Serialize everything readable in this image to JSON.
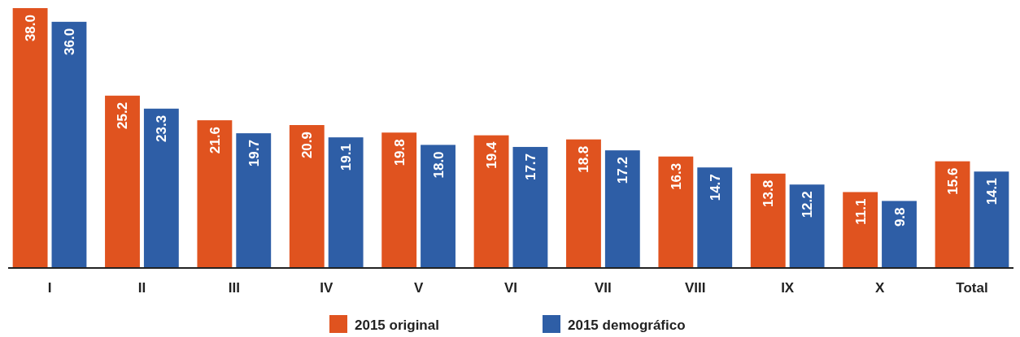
{
  "chart_data": {
    "type": "bar",
    "categories": [
      "I",
      "II",
      "III",
      "IV",
      "V",
      "VI",
      "VII",
      "VIII",
      "IX",
      "X",
      "Total"
    ],
    "series": [
      {
        "name": "2015 original",
        "color": "#e0531f",
        "values": [
          38.0,
          25.2,
          21.6,
          20.9,
          19.8,
          19.4,
          18.8,
          16.3,
          13.8,
          11.1,
          15.6
        ],
        "value_labels": [
          "38.0",
          "25.2",
          "21.6",
          "20.9",
          "19.8",
          "19.4",
          "18.8",
          "16.3",
          "13.8",
          "11.1",
          "15.6"
        ]
      },
      {
        "name": "2015 demográfico",
        "color": "#2e5ea6",
        "values": [
          36.0,
          23.3,
          19.7,
          19.1,
          18.0,
          17.7,
          17.2,
          14.7,
          12.2,
          9.8,
          14.1
        ],
        "value_labels": [
          "36.0",
          "23.3",
          "19.7",
          "19.1",
          "18.0",
          "17.7",
          "17.2",
          "14.7",
          "12.2",
          "9.8",
          "14.1"
        ]
      }
    ],
    "legend": "bottom"
  }
}
